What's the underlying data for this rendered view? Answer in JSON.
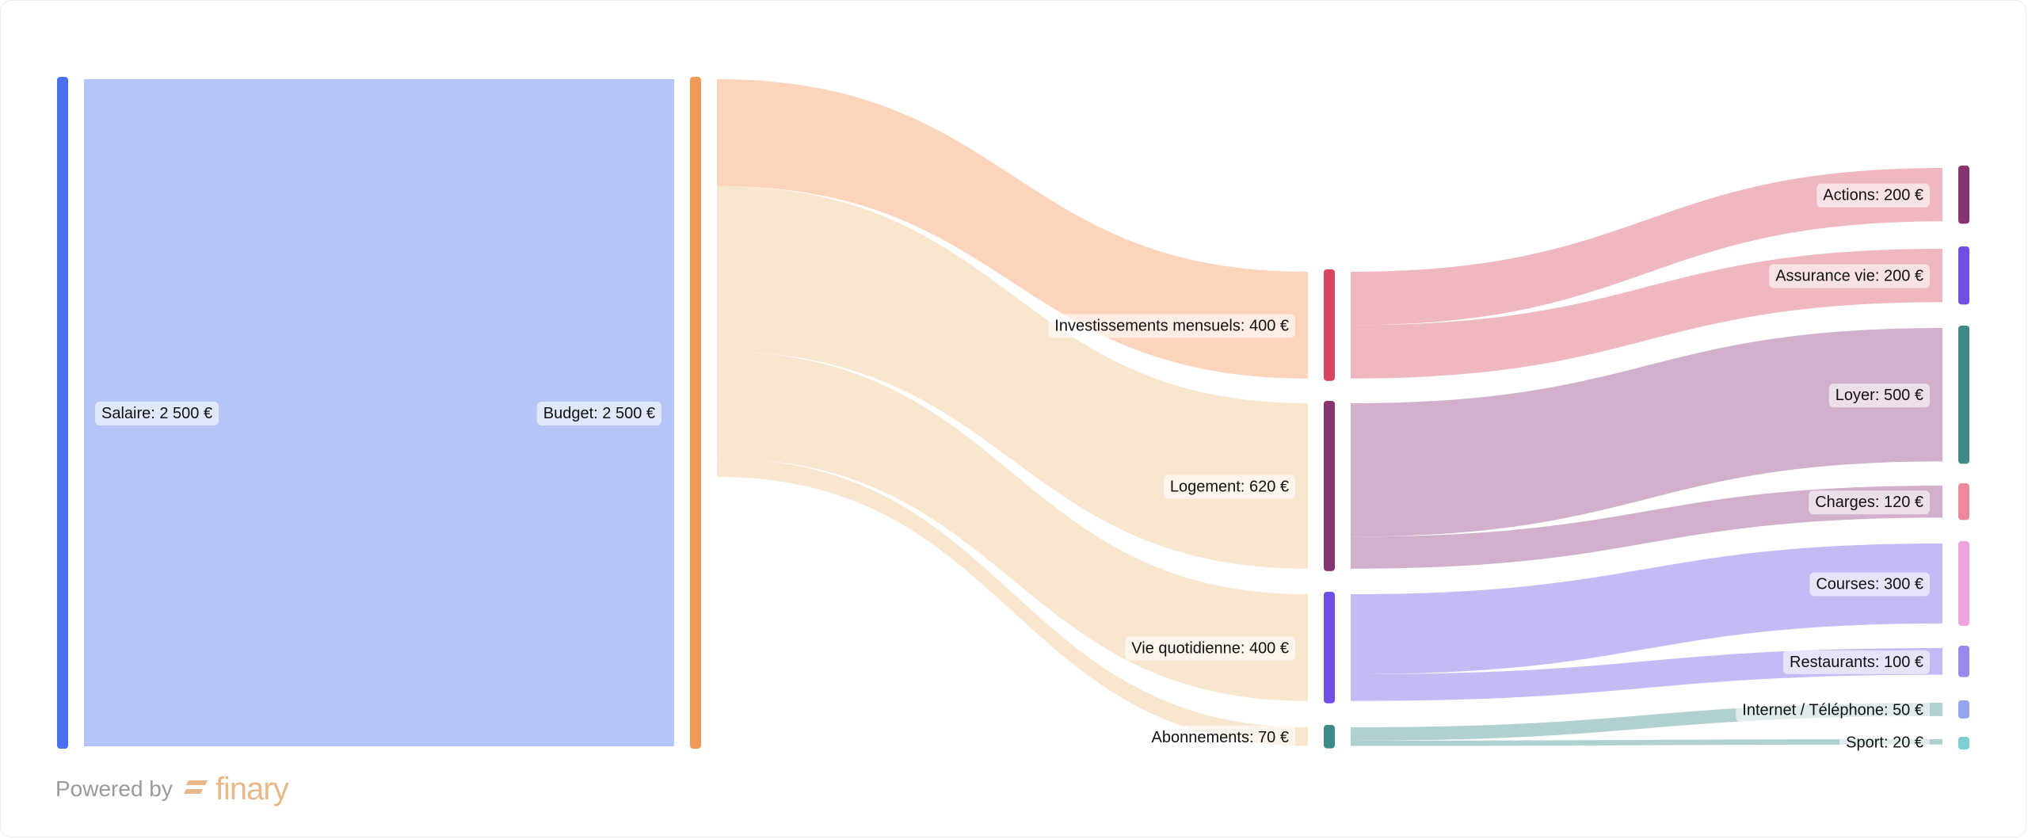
{
  "chart_data": {
    "type": "sankey",
    "nodes": [
      {
        "id": "salaire",
        "label": "Salaire: 2 500 €",
        "value": 2500,
        "color": "#4a6ff0",
        "level": 0
      },
      {
        "id": "budget",
        "label": "Budget: 2 500 €",
        "value": 2500,
        "color": "#f0975a",
        "level": 1
      },
      {
        "id": "invest",
        "label": "Investissements mensuels: 400 €",
        "value": 400,
        "color": "#d6455f",
        "level": 2
      },
      {
        "id": "logement",
        "label": "Logement: 620 €",
        "value": 620,
        "color": "#86336f",
        "level": 2
      },
      {
        "id": "vie",
        "label": "Vie quotidienne: 400 €",
        "value": 400,
        "color": "#7050e4",
        "level": 2
      },
      {
        "id": "abo",
        "label": "Abonnements: 70 €",
        "value": 70,
        "color": "#3e8a86",
        "level": 2
      },
      {
        "id": "actions",
        "label": "Actions: 200 €",
        "value": 200,
        "color": "#86336f",
        "level": 3
      },
      {
        "id": "assurance",
        "label": "Assurance vie: 200 €",
        "value": 200,
        "color": "#7050e4",
        "level": 3
      },
      {
        "id": "loyer",
        "label": "Loyer: 500 €",
        "value": 500,
        "color": "#3e8a86",
        "level": 3
      },
      {
        "id": "charges",
        "label": "Charges: 120 €",
        "value": 120,
        "color": "#ec8a9a",
        "level": 3
      },
      {
        "id": "courses",
        "label": "Courses: 300 €",
        "value": 300,
        "color": "#eda4dc",
        "level": 3
      },
      {
        "id": "restaurants",
        "label": "Restaurants: 100 €",
        "value": 100,
        "color": "#9a88ec",
        "level": 3
      },
      {
        "id": "internet",
        "label": "Internet / Téléphone: 50 €",
        "value": 50,
        "color": "#93a4ee",
        "level": 3
      },
      {
        "id": "sport",
        "label": "Sport: 20 €",
        "value": 20,
        "color": "#7fcfd0",
        "level": 3
      }
    ],
    "links": [
      {
        "source": "salaire",
        "target": "budget",
        "value": 2500,
        "color": "#b6c5f7"
      },
      {
        "source": "budget",
        "target": "invest",
        "value": 400,
        "color": "#fcd4bc"
      },
      {
        "source": "budget",
        "target": "logement",
        "value": 620,
        "color": "#f8e6cf"
      },
      {
        "source": "budget",
        "target": "vie",
        "value": 400,
        "color": "#f8e6cf"
      },
      {
        "source": "budget",
        "target": "abo",
        "value": 70,
        "color": "#f8e6cf"
      },
      {
        "source": "invest",
        "target": "actions",
        "value": 200,
        "color": "#efb7bf"
      },
      {
        "source": "invest",
        "target": "assurance",
        "value": 200,
        "color": "#efb7bf"
      },
      {
        "source": "logement",
        "target": "loyer",
        "value": 500,
        "color": "#d2afcb"
      },
      {
        "source": "logement",
        "target": "charges",
        "value": 120,
        "color": "#d2afcb"
      },
      {
        "source": "vie",
        "target": "courses",
        "value": 300,
        "color": "#c5baf4"
      },
      {
        "source": "vie",
        "target": "restaurants",
        "value": 100,
        "color": "#c5baf4"
      },
      {
        "source": "abo",
        "target": "internet",
        "value": 50,
        "color": "#b1d0d0"
      },
      {
        "source": "abo",
        "target": "sport",
        "value": 20,
        "color": "#b1d0d0"
      }
    ]
  },
  "footer": {
    "powered_by": "Powered by",
    "brand": "finary",
    "brand_color": "#e7b98a"
  }
}
